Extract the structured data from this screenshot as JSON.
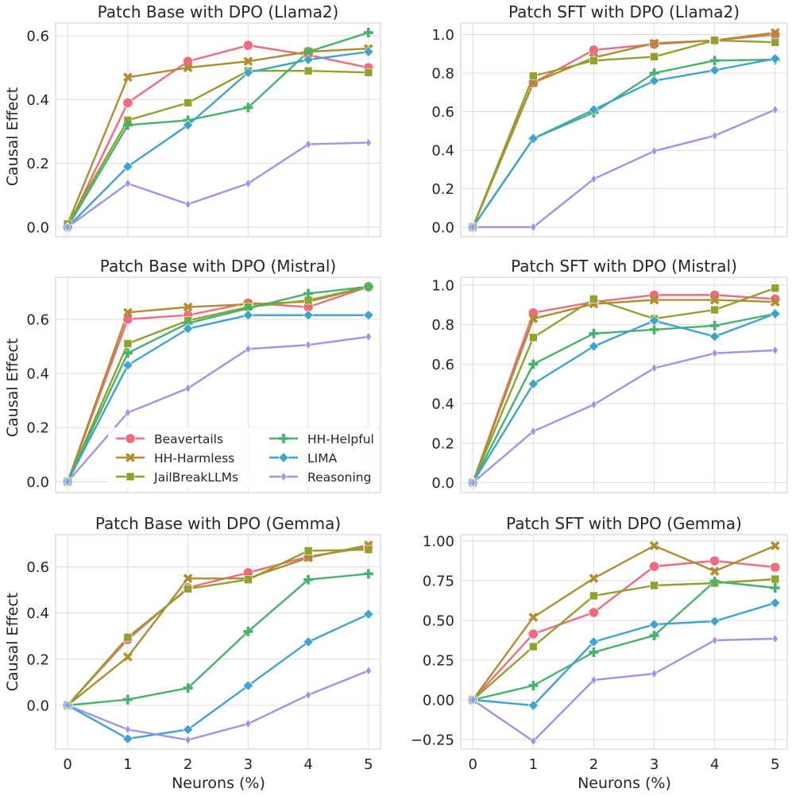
{
  "series_styles": [
    {
      "name": "Beavertails",
      "color": "#ee6b80",
      "marker": "circle"
    },
    {
      "name": "HH-Harmless",
      "color": "#b08d2e",
      "marker": "x"
    },
    {
      "name": "JailBreakLLMs",
      "color": "#8fa22d",
      "marker": "square"
    },
    {
      "name": "HH-Helpful",
      "color": "#47b26e",
      "marker": "plus"
    },
    {
      "name": "LIMA",
      "color": "#3fa3cf",
      "marker": "diamond"
    },
    {
      "name": "Reasoning",
      "color": "#9a96ee",
      "marker": "thin-diamond"
    }
  ],
  "xlabel": "Neurons (%)",
  "ylabel": "Causal Effect",
  "chart_data": [
    {
      "type": "line",
      "title": "Patch Base with DPO (Llama2)",
      "x": [
        0,
        1,
        2,
        3,
        4,
        5
      ],
      "xticks": [
        "0",
        "1",
        "2",
        "3",
        "4",
        "5"
      ],
      "ylim": [
        -0.03,
        0.64
      ],
      "yticks": [
        0.0,
        0.2,
        0.4,
        0.6
      ],
      "yticklabels": [
        "0.0",
        "0.2",
        "0.4",
        "0.6"
      ],
      "series": [
        {
          "name": "Beavertails",
          "values": [
            0.0,
            0.39,
            0.52,
            0.57,
            0.54,
            0.5
          ]
        },
        {
          "name": "HH-Harmless",
          "values": [
            0.01,
            0.47,
            0.5,
            0.52,
            0.55,
            0.56
          ]
        },
        {
          "name": "JailBreakLLMs",
          "values": [
            0.01,
            0.335,
            0.39,
            0.49,
            0.49,
            0.485
          ]
        },
        {
          "name": "HH-Helpful",
          "values": [
            0.0,
            0.32,
            0.335,
            0.375,
            0.55,
            0.61
          ]
        },
        {
          "name": "LIMA",
          "values": [
            0.0,
            0.19,
            0.32,
            0.485,
            0.525,
            0.55
          ]
        },
        {
          "name": "Reasoning",
          "values": [
            0.0,
            0.137,
            0.072,
            0.137,
            0.26,
            0.265
          ]
        }
      ]
    },
    {
      "type": "line",
      "title": "Patch SFT with DPO (Llama2)",
      "x": [
        0,
        1,
        2,
        3,
        4,
        5
      ],
      "xticks": [
        "0",
        "1",
        "2",
        "3",
        "4",
        "5"
      ],
      "ylim": [
        -0.05,
        1.06
      ],
      "yticks": [
        0.0,
        0.2,
        0.4,
        0.6,
        0.8,
        1.0
      ],
      "yticklabels": [
        "0.0",
        "0.2",
        "0.4",
        "0.6",
        "0.8",
        "1.0"
      ],
      "series": [
        {
          "name": "Beavertails",
          "values": [
            0.0,
            0.75,
            0.92,
            0.95,
            0.97,
            1.0
          ]
        },
        {
          "name": "HH-Harmless",
          "values": [
            0.0,
            0.75,
            0.88,
            0.955,
            0.97,
            1.01
          ]
        },
        {
          "name": "JailBreakLLMs",
          "values": [
            0.0,
            0.785,
            0.865,
            0.885,
            0.97,
            0.96
          ]
        },
        {
          "name": "HH-Helpful",
          "values": [
            0.0,
            0.46,
            0.595,
            0.8,
            0.865,
            0.87
          ]
        },
        {
          "name": "LIMA",
          "values": [
            0.0,
            0.46,
            0.61,
            0.76,
            0.815,
            0.875
          ]
        },
        {
          "name": "Reasoning",
          "values": [
            0.0,
            0.0,
            0.25,
            0.395,
            0.475,
            0.61
          ]
        }
      ]
    },
    {
      "type": "line",
      "title": "Patch Base with DPO (Mistral)",
      "x": [
        0,
        1,
        2,
        3,
        4,
        5
      ],
      "xticks": [
        "0",
        "1",
        "2",
        "3",
        "4",
        "5"
      ],
      "ylim": [
        -0.04,
        0.755
      ],
      "yticks": [
        0.0,
        0.2,
        0.4,
        0.6
      ],
      "yticklabels": [
        "0.0",
        "0.2",
        "0.4",
        "0.6"
      ],
      "legend": {
        "placement": "lower-center",
        "columns": 2
      },
      "series": [
        {
          "name": "Beavertails",
          "values": [
            0.0,
            0.6,
            0.615,
            0.66,
            0.645,
            0.72
          ]
        },
        {
          "name": "HH-Harmless",
          "values": [
            0.0,
            0.625,
            0.645,
            0.655,
            0.665,
            0.72
          ]
        },
        {
          "name": "JailBreakLLMs",
          "values": [
            0.0,
            0.51,
            0.595,
            0.645,
            0.67,
            0.72
          ]
        },
        {
          "name": "HH-Helpful",
          "values": [
            0.0,
            0.475,
            0.585,
            0.64,
            0.695,
            0.72
          ]
        },
        {
          "name": "LIMA",
          "values": [
            0.0,
            0.43,
            0.565,
            0.615,
            0.615,
            0.615
          ]
        },
        {
          "name": "Reasoning",
          "values": [
            0.0,
            0.255,
            0.345,
            0.49,
            0.505,
            0.535
          ]
        }
      ]
    },
    {
      "type": "line",
      "title": "Patch SFT with DPO (Mistral)",
      "x": [
        0,
        1,
        2,
        3,
        4,
        5
      ],
      "xticks": [
        "0",
        "1",
        "2",
        "3",
        "4",
        "5"
      ],
      "ylim": [
        -0.05,
        1.04
      ],
      "yticks": [
        0.0,
        0.2,
        0.4,
        0.6,
        0.8,
        1.0
      ],
      "yticklabels": [
        "0.0",
        "0.2",
        "0.4",
        "0.6",
        "0.8",
        "1.0"
      ],
      "series": [
        {
          "name": "Beavertails",
          "values": [
            0.0,
            0.86,
            0.915,
            0.95,
            0.95,
            0.93
          ]
        },
        {
          "name": "HH-Harmless",
          "values": [
            0.0,
            0.83,
            0.905,
            0.925,
            0.925,
            0.915
          ]
        },
        {
          "name": "JailBreakLLMs",
          "values": [
            0.0,
            0.735,
            0.93,
            0.83,
            0.875,
            0.985
          ]
        },
        {
          "name": "HH-Helpful",
          "values": [
            0.0,
            0.6,
            0.755,
            0.775,
            0.795,
            0.855
          ]
        },
        {
          "name": "LIMA",
          "values": [
            0.0,
            0.5,
            0.69,
            0.82,
            0.74,
            0.855
          ]
        },
        {
          "name": "Reasoning",
          "values": [
            0.0,
            0.26,
            0.395,
            0.58,
            0.655,
            0.67
          ]
        }
      ]
    },
    {
      "type": "line",
      "title": "Patch Base with DPO (Gemma)",
      "x": [
        0,
        1,
        2,
        3,
        4,
        5
      ],
      "xticks": [
        "0",
        "1",
        "2",
        "3",
        "4",
        "5"
      ],
      "ylim": [
        -0.19,
        0.74
      ],
      "yticks": [
        0.0,
        0.2,
        0.4,
        0.6
      ],
      "yticklabels": [
        "0.0",
        "0.2",
        "0.4",
        "0.6"
      ],
      "series": [
        {
          "name": "Beavertails",
          "values": [
            0.0,
            0.285,
            0.51,
            0.575,
            0.645,
            0.685
          ]
        },
        {
          "name": "HH-Harmless",
          "values": [
            0.0,
            0.21,
            0.55,
            0.55,
            0.64,
            0.695
          ]
        },
        {
          "name": "JailBreakLLMs",
          "values": [
            0.0,
            0.295,
            0.505,
            0.545,
            0.67,
            0.675
          ]
        },
        {
          "name": "HH-Helpful",
          "values": [
            0.0,
            0.025,
            0.075,
            0.32,
            0.545,
            0.57
          ]
        },
        {
          "name": "LIMA",
          "values": [
            0.0,
            -0.145,
            -0.105,
            0.085,
            0.275,
            0.395
          ]
        },
        {
          "name": "Reasoning",
          "values": [
            0.0,
            -0.105,
            -0.15,
            -0.08,
            0.045,
            0.15
          ]
        }
      ]
    },
    {
      "type": "line",
      "title": "Patch SFT with DPO (Gemma)",
      "x": [
        0,
        1,
        2,
        3,
        4,
        5
      ],
      "xticks": [
        "0",
        "1",
        "2",
        "3",
        "4",
        "5"
      ],
      "ylim": [
        -0.31,
        1.04
      ],
      "yticks": [
        -0.25,
        0.0,
        0.25,
        0.5,
        0.75,
        1.0
      ],
      "yticklabels": [
        "−0.25",
        "0.00",
        "0.25",
        "0.50",
        "0.75",
        "1.00"
      ],
      "series": [
        {
          "name": "Beavertails",
          "values": [
            0.0,
            0.415,
            0.55,
            0.84,
            0.875,
            0.835
          ]
        },
        {
          "name": "HH-Harmless",
          "values": [
            0.0,
            0.52,
            0.765,
            0.97,
            0.81,
            0.97
          ]
        },
        {
          "name": "JailBreakLLMs",
          "values": [
            0.0,
            0.335,
            0.655,
            0.72,
            0.735,
            0.76
          ]
        },
        {
          "name": "HH-Helpful",
          "values": [
            0.0,
            0.09,
            0.3,
            0.405,
            0.745,
            0.705
          ]
        },
        {
          "name": "LIMA",
          "values": [
            0.0,
            -0.035,
            0.365,
            0.475,
            0.495,
            0.61
          ]
        },
        {
          "name": "Reasoning",
          "values": [
            0.0,
            -0.26,
            0.125,
            0.165,
            0.375,
            0.385
          ]
        }
      ]
    }
  ]
}
